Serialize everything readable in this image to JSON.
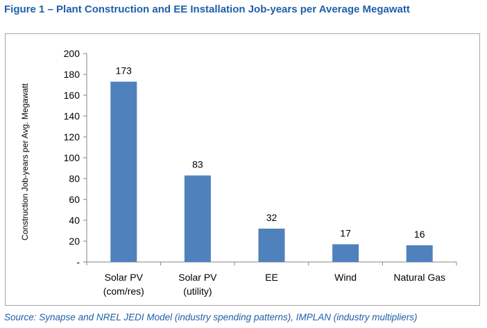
{
  "figure": {
    "title": "Figure 1 – Plant Construction and EE Installation Job-years per Average Megawatt",
    "source": "Source: Synapse and NREL JEDI Model (industry spending patterns), IMPLAN (industry multipliers)"
  },
  "colors": {
    "bar": "#4f81bd",
    "title": "#1f5fa8",
    "axis": "#868686"
  },
  "chart_data": {
    "type": "bar",
    "title": "",
    "xlabel": "",
    "ylabel": "Construction Job-years per Avg. Megawatt",
    "categories": [
      [
        "Solar PV",
        "(com/res)"
      ],
      [
        "Solar PV",
        "(utility)"
      ],
      [
        "EE"
      ],
      [
        "Wind"
      ],
      [
        "Natural Gas"
      ]
    ],
    "values": [
      173,
      83,
      32,
      17,
      16
    ],
    "data_labels": [
      "173",
      "83",
      "32",
      "17",
      "16"
    ],
    "ylim": [
      0,
      200
    ],
    "yticks": [
      "-",
      "20",
      "40",
      "60",
      "80",
      "100",
      "120",
      "140",
      "160",
      "180",
      "200"
    ],
    "grid": false,
    "legend": "none"
  }
}
